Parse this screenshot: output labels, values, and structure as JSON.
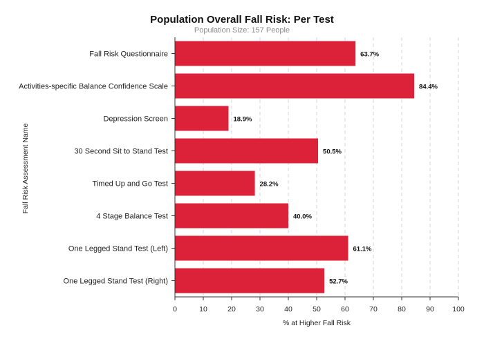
{
  "chart_data": {
    "type": "bar",
    "orientation": "horizontal",
    "title": "Population Overall Fall Risk: Per Test",
    "subtitle": "Population Size: 157 People",
    "xlabel": "% at Higher Fall Risk",
    "ylabel": "Fall Risk Assessment Name",
    "xlim": [
      0,
      100
    ],
    "xticks": [
      "0",
      "10",
      "20",
      "30",
      "40",
      "50",
      "60",
      "70",
      "80",
      "90",
      "100"
    ],
    "grid": "vertical dashed",
    "bar_color": "#dc2239",
    "categories": [
      "Fall Risk Questionnaire",
      "Activities-specific Balance Confidence Scale",
      "Depression Screen",
      "30 Second Sit to Stand Test",
      "Timed Up and Go Test",
      "4 Stage Balance Test",
      "One Legged Stand Test (Left)",
      "One Legged Stand Test (Right)"
    ],
    "values": [
      63.7,
      84.4,
      18.9,
      50.5,
      28.2,
      40.0,
      61.1,
      52.7
    ],
    "data_labels": [
      "63.7%",
      "84.4%",
      "18.9%",
      "50.5%",
      "28.2%",
      "40.0%",
      "61.1%",
      "52.7%"
    ]
  }
}
